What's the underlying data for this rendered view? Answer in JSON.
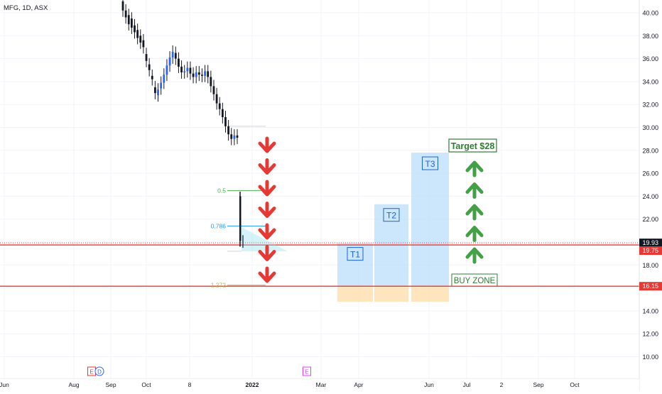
{
  "header": {
    "symbol_label": "MFG, 1D, ASX"
  },
  "chart_data": {
    "type": "candlestick",
    "symbol": "MFG",
    "interval": "1D",
    "exchange": "ASX",
    "ylim": [
      8.6,
      41.2
    ],
    "y_ticks": [
      "10.00",
      "12.00",
      "14.00",
      "16.00",
      "18.00",
      "20.00",
      "22.00",
      "24.00",
      "26.00",
      "28.00",
      "30.00",
      "32.00",
      "34.00",
      "36.00",
      "38.00",
      "40.00"
    ],
    "x_ticks": [
      "Jun",
      "Aug",
      "Sep",
      "Oct",
      "8",
      "2022",
      "Mar",
      "Apr",
      "Jun",
      "Jul",
      "2",
      "Sep",
      "Oct"
    ],
    "price_series": [
      [
        41.0,
        40.2
      ],
      [
        40.2,
        39.6
      ],
      [
        39.8,
        39.0
      ],
      [
        39.5,
        38.7
      ],
      [
        38.9,
        38.3
      ],
      [
        38.5,
        37.8
      ],
      [
        38.0,
        37.4
      ],
      [
        37.6,
        37.0
      ],
      [
        36.4,
        35.8
      ],
      [
        35.5,
        35.0
      ],
      [
        34.5,
        34.2
      ],
      [
        33.5,
        33.0
      ],
      [
        32.8,
        33.3
      ],
      [
        33.4,
        33.9
      ],
      [
        33.9,
        34.6
      ],
      [
        34.6,
        35.4
      ],
      [
        35.4,
        36.1
      ],
      [
        36.1,
        36.6
      ],
      [
        36.5,
        36.0
      ],
      [
        36.0,
        35.3
      ],
      [
        35.3,
        34.8
      ],
      [
        34.8,
        34.9
      ],
      [
        34.9,
        35.2
      ],
      [
        35.2,
        34.7
      ],
      [
        34.7,
        34.4
      ],
      [
        34.4,
        34.8
      ],
      [
        34.8,
        34.6
      ],
      [
        34.6,
        34.5
      ],
      [
        34.5,
        34.9
      ],
      [
        34.9,
        34.4
      ],
      [
        34.4,
        33.6
      ],
      [
        33.6,
        32.9
      ],
      [
        32.9,
        32.1
      ],
      [
        32.1,
        31.6
      ],
      [
        31.6,
        30.9
      ],
      [
        30.9,
        30.1
      ],
      [
        30.1,
        29.4
      ],
      [
        29.4,
        29.0
      ],
      [
        29.0,
        29.3
      ],
      [
        29.3,
        29.1
      ]
    ],
    "spike_candle": {
      "high": 24.4,
      "open": 24.0,
      "close": 20.1,
      "low": 19.6
    },
    "fibonacci": [
      {
        "label": "0.5",
        "price": 24.5,
        "color": "#4caf50"
      },
      {
        "label": "0.786",
        "price": 21.4,
        "color": "#2196f3"
      },
      {
        "label": "1.272",
        "price": 16.25,
        "color": "#b7b74c"
      }
    ],
    "horizontal_levels": [
      {
        "price": 19.93,
        "label": "19.93",
        "color": "#e53935",
        "style": "dotted"
      },
      {
        "price": 19.75,
        "label": "19.75",
        "color": "#e53935",
        "style": "solid"
      },
      {
        "price": 16.15,
        "label": "16.15",
        "color": "#e53935",
        "style": "solid"
      }
    ],
    "targets": [
      {
        "label": "T1",
        "top": 19.9
      },
      {
        "label": "T2",
        "top": 23.3
      },
      {
        "label": "T3",
        "top": 27.8
      }
    ],
    "buy_zone": {
      "label": "BUY ZONE",
      "low": 14.8,
      "high": 16.15
    },
    "target_label": "Target $28",
    "down_arrow_count": 7,
    "up_arrow_count": 5,
    "event_markers": [
      "E",
      "D",
      "E"
    ],
    "colors": {
      "up_arrow": "#43a047",
      "down_arrow": "#e53935",
      "target_box": "#bbdefb",
      "target_label_text": "#1e63c9",
      "buy_zone_fill": "#ffe0b2",
      "buy_zone_text": "#2e7d32",
      "level_line": "#e53935",
      "candle": "#131722"
    }
  }
}
